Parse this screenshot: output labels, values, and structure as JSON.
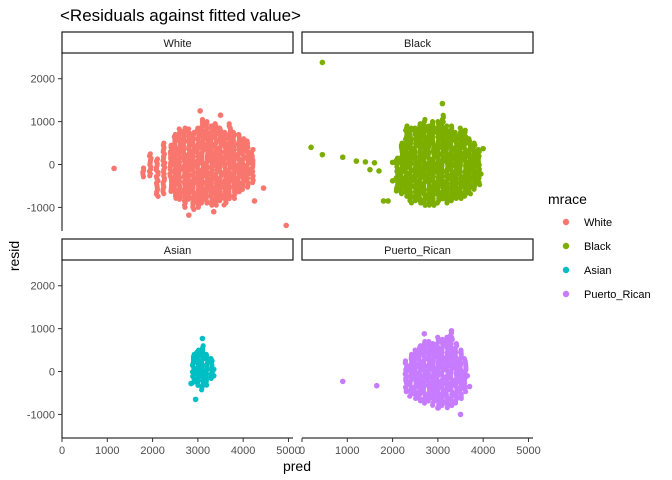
{
  "chart_data": {
    "type": "scatter",
    "title": "<Residuals against fitted value>",
    "xlabel": "pred",
    "ylabel": "resid",
    "xlim": [
      0,
      5100
    ],
    "ylim": [
      -1550,
      2600
    ],
    "x_ticks": [
      0,
      1000,
      2000,
      3000,
      4000,
      5000
    ],
    "x_tick_labels": [
      "0",
      "1000",
      "2000",
      "3000",
      "4000",
      "5000"
    ],
    "y_ticks": [
      -1000,
      0,
      1000,
      2000
    ],
    "y_tick_labels": [
      "-1000",
      "0",
      "1000",
      "2000"
    ],
    "legend": {
      "title": "mrace",
      "placement": "right",
      "entries": [
        {
          "label": "White",
          "color": "#F8766D"
        },
        {
          "label": "Black",
          "color": "#7CAE00"
        },
        {
          "label": "Asian",
          "color": "#00BFC4"
        },
        {
          "label": "Puerto_Rican",
          "color": "#C77CFF"
        }
      ]
    },
    "facets": [
      {
        "name": "White",
        "color": "#F8766D",
        "columns": [
          {
            "x": 1800,
            "ymin": -330,
            "ymax": -80
          },
          {
            "x": 1950,
            "ymin": -310,
            "ymax": 250
          },
          {
            "x": 2100,
            "ymin": -750,
            "ymax": 130
          },
          {
            "x": 2250,
            "ymin": -720,
            "ymax": 500
          },
          {
            "x": 2400,
            "ymin": -650,
            "ymax": 450
          },
          {
            "x": 2500,
            "ymin": -800,
            "ymax": 700
          },
          {
            "x": 2600,
            "ymin": -850,
            "ymax": 830
          },
          {
            "x": 2700,
            "ymin": -1000,
            "ymax": 850
          },
          {
            "x": 2800,
            "ymin": -850,
            "ymax": 830
          },
          {
            "x": 2900,
            "ymin": -1050,
            "ymax": 750
          },
          {
            "x": 3000,
            "ymin": -1000,
            "ymax": 850
          },
          {
            "x": 3100,
            "ymin": -950,
            "ymax": 1050
          },
          {
            "x": 3200,
            "ymin": -900,
            "ymax": 1000
          },
          {
            "x": 3300,
            "ymin": -950,
            "ymax": 900
          },
          {
            "x": 3400,
            "ymin": -950,
            "ymax": 950
          },
          {
            "x": 3500,
            "ymin": -850,
            "ymax": 850
          },
          {
            "x": 3600,
            "ymin": -950,
            "ymax": 750
          },
          {
            "x": 3700,
            "ymin": -800,
            "ymax": 950
          },
          {
            "x": 3800,
            "ymin": -800,
            "ymax": 750
          },
          {
            "x": 3900,
            "ymin": -650,
            "ymax": 700
          },
          {
            "x": 4000,
            "ymin": -600,
            "ymax": 600
          },
          {
            "x": 4100,
            "ymin": -550,
            "ymax": 550
          },
          {
            "x": 4200,
            "ymin": -450,
            "ymax": 350
          }
        ],
        "points": [
          {
            "x": 1150,
            "y": -90
          },
          {
            "x": 2800,
            "y": -1180
          },
          {
            "x": 3050,
            "y": 1250
          },
          {
            "x": 3500,
            "y": 1150
          },
          {
            "x": 3350,
            "y": -1100
          },
          {
            "x": 4450,
            "y": -550
          },
          {
            "x": 4250,
            "y": -850
          },
          {
            "x": 4950,
            "y": -1420
          }
        ]
      },
      {
        "name": "Black",
        "color": "#7CAE00",
        "columns": [
          {
            "x": 2100,
            "ymin": -650,
            "ymax": 150
          },
          {
            "x": 2200,
            "ymin": -700,
            "ymax": 500
          },
          {
            "x": 2300,
            "ymin": -750,
            "ymax": 900
          },
          {
            "x": 2400,
            "ymin": -900,
            "ymax": 850
          },
          {
            "x": 2500,
            "ymin": -850,
            "ymax": 850
          },
          {
            "x": 2600,
            "ymin": -900,
            "ymax": 950
          },
          {
            "x": 2700,
            "ymin": -1000,
            "ymax": 1050
          },
          {
            "x": 2800,
            "ymin": -950,
            "ymax": 900
          },
          {
            "x": 2900,
            "ymin": -950,
            "ymax": 1000
          },
          {
            "x": 3000,
            "ymin": -900,
            "ymax": 1000
          },
          {
            "x": 3100,
            "ymin": -850,
            "ymax": 1150
          },
          {
            "x": 3200,
            "ymin": -900,
            "ymax": 900
          },
          {
            "x": 3300,
            "ymin": -850,
            "ymax": 900
          },
          {
            "x": 3400,
            "ymin": -800,
            "ymax": 750
          },
          {
            "x": 3500,
            "ymin": -800,
            "ymax": 850
          },
          {
            "x": 3600,
            "ymin": -750,
            "ymax": 800
          },
          {
            "x": 3700,
            "ymin": -700,
            "ymax": 600
          },
          {
            "x": 3800,
            "ymin": -600,
            "ymax": 500
          },
          {
            "x": 3900,
            "ymin": -500,
            "ymax": 350
          }
        ],
        "points": [
          {
            "x": 450,
            "y": 2380
          },
          {
            "x": 200,
            "y": 400
          },
          {
            "x": 450,
            "y": 230
          },
          {
            "x": 900,
            "y": 170
          },
          {
            "x": 1200,
            "y": 80
          },
          {
            "x": 1400,
            "y": 60
          },
          {
            "x": 1500,
            "y": -120
          },
          {
            "x": 1600,
            "y": 40
          },
          {
            "x": 1700,
            "y": -150
          },
          {
            "x": 1800,
            "y": -850
          },
          {
            "x": 1900,
            "y": -850
          },
          {
            "x": 2000,
            "y": -380
          },
          {
            "x": 2000,
            "y": 50
          },
          {
            "x": 3100,
            "y": 1420
          },
          {
            "x": 4000,
            "y": 370
          },
          {
            "x": 3950,
            "y": -220
          }
        ]
      },
      {
        "name": "Asian",
        "color": "#00BFC4",
        "columns": [
          {
            "x": 2900,
            "ymin": -300,
            "ymax": 400
          },
          {
            "x": 3000,
            "ymin": -350,
            "ymax": 500
          },
          {
            "x": 3100,
            "ymin": -450,
            "ymax": 600
          },
          {
            "x": 3200,
            "ymin": -350,
            "ymax": 400
          },
          {
            "x": 3300,
            "ymin": -200,
            "ymax": 300
          }
        ],
        "points": [
          {
            "x": 3100,
            "y": 770
          },
          {
            "x": 2950,
            "y": -650
          },
          {
            "x": 2850,
            "y": -280
          },
          {
            "x": 3350,
            "y": 50
          },
          {
            "x": 3350,
            "y": -100
          }
        ]
      },
      {
        "name": "Puerto_Rican",
        "color": "#C77CFF",
        "columns": [
          {
            "x": 2300,
            "ymin": -500,
            "ymax": 250
          },
          {
            "x": 2400,
            "ymin": -600,
            "ymax": 400
          },
          {
            "x": 2500,
            "ymin": -650,
            "ymax": 500
          },
          {
            "x": 2600,
            "ymin": -700,
            "ymax": 600
          },
          {
            "x": 2700,
            "ymin": -750,
            "ymax": 700
          },
          {
            "x": 2800,
            "ymin": -700,
            "ymax": 700
          },
          {
            "x": 2900,
            "ymin": -800,
            "ymax": 650
          },
          {
            "x": 3000,
            "ymin": -850,
            "ymax": 800
          },
          {
            "x": 3100,
            "ymin": -800,
            "ymax": 750
          },
          {
            "x": 3200,
            "ymin": -850,
            "ymax": 800
          },
          {
            "x": 3300,
            "ymin": -800,
            "ymax": 900
          },
          {
            "x": 3400,
            "ymin": -750,
            "ymax": 650
          },
          {
            "x": 3500,
            "ymin": -650,
            "ymax": 500
          },
          {
            "x": 3600,
            "ymin": -500,
            "ymax": 300
          }
        ],
        "points": [
          {
            "x": 900,
            "y": -230
          },
          {
            "x": 1650,
            "y": -330
          },
          {
            "x": 2700,
            "y": 880
          },
          {
            "x": 3300,
            "y": 950
          },
          {
            "x": 3500,
            "y": -1000
          },
          {
            "x": 3000,
            "y": -850
          },
          {
            "x": 3700,
            "y": -350
          },
          {
            "x": 3650,
            "y": -100
          }
        ]
      }
    ]
  }
}
